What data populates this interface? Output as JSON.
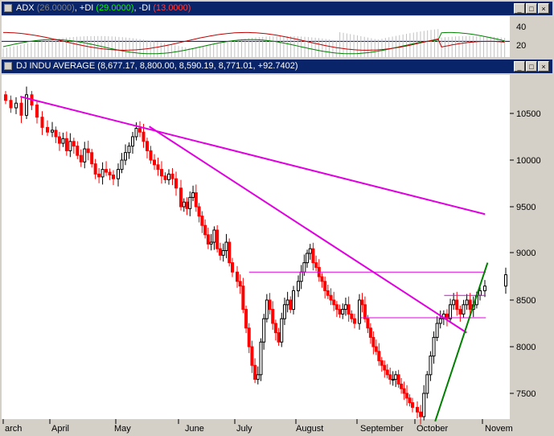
{
  "adx_window": {
    "title_prefix": "ADX",
    "adx_value": "(26.0000)",
    "pdi_label": "+DI",
    "pdi_value": "(29.0000)",
    "mdi_label": "-DI",
    "mdi_value": "(13.0000)",
    "y_ticks": [
      "40",
      "20"
    ],
    "colors": {
      "adx": "#c0c0c0",
      "pdi": "#008000",
      "mdi": "#c00000",
      "reference": "#00008b"
    }
  },
  "price_window": {
    "title": "DJ INDU AVERAGE",
    "ohlc_text": "(8,677.17, 8,800.00, 8,590.19, 8,771.01, +92.7402)"
  },
  "chart_data": {
    "type": "candlestick",
    "title": "DJ INDU AVERAGE",
    "ylim": [
      7150,
      10800
    ],
    "y_ticks": [
      10500,
      10000,
      9500,
      9000,
      8500,
      8000,
      7500
    ],
    "x_labels": [
      "arch",
      "April",
      "May",
      "June",
      "July",
      "August",
      "September",
      "October",
      "Novem"
    ],
    "series": [
      {
        "month": "March",
        "values": [
          10640,
          10560,
          10610,
          10480,
          10700,
          10590,
          10460,
          10350,
          10300
        ]
      },
      {
        "month": "April",
        "values": [
          10320,
          10250,
          10180,
          10230,
          10100,
          10200,
          10150,
          10050,
          9980,
          10120,
          10080,
          9960,
          9850,
          9820,
          9900,
          9870,
          9840,
          9800
        ]
      },
      {
        "month": "May",
        "values": [
          9900,
          10000,
          10080,
          10150,
          10250,
          10340,
          10300,
          10200,
          10100,
          10000,
          9950,
          9900,
          9830,
          9790,
          9850,
          9800,
          9700
        ]
      },
      {
        "month": "June",
        "values": [
          9500,
          9550,
          9480,
          9600,
          9650,
          9500,
          9400,
          9300,
          9200,
          9100,
          9120,
          9250,
          9050,
          8980,
          9030,
          9120,
          8900,
          8800
        ]
      },
      {
        "month": "July",
        "values": [
          8700,
          8650,
          8400,
          8200,
          8000,
          7800,
          7650,
          7700,
          8050,
          8300,
          8500,
          8400,
          8250,
          8150,
          8050,
          8300,
          8450,
          8500,
          8400,
          8600
        ]
      },
      {
        "month": "August",
        "values": [
          8700,
          8800,
          8900,
          9000,
          9050,
          8900,
          8850,
          8750,
          8700,
          8600,
          8550,
          8500,
          8450,
          8400,
          8350,
          8400,
          8450,
          8350,
          8300,
          8250
        ]
      },
      {
        "month": "September",
        "values": [
          8500,
          8450,
          8300,
          8200,
          8100,
          8000,
          7950,
          7850,
          7800,
          7750,
          7700,
          7650,
          7650,
          7700,
          7600,
          7550,
          7500,
          7450,
          7400,
          7350
        ]
      },
      {
        "month": "October",
        "values": [
          7300,
          7250,
          7500,
          7700,
          7900,
          8100,
          8250,
          8300,
          8350,
          8300,
          8450,
          8500,
          8400,
          8350,
          8450,
          8500,
          8400,
          8450,
          8550,
          8600
        ]
      },
      {
        "month": "November",
        "values": [
          8650,
          8771
        ]
      }
    ],
    "last_bar": {
      "open": 8677.17,
      "high": 8800.0,
      "low": 8590.19,
      "close": 8771.01,
      "change": 92.7402
    },
    "trendlines": [
      {
        "color": "#e000e0",
        "from": {
          "x": "Mar-12",
          "y": 10680
        },
        "to": {
          "x": "Nov-04",
          "y": 9420
        }
      },
      {
        "color": "#e000e0",
        "from": {
          "x": "May-17",
          "y": 10360
        },
        "to": {
          "x": "Oct-24",
          "y": 8150
        }
      },
      {
        "color": "#e000e0",
        "from": {
          "x": "Jul-08",
          "y": 8800
        },
        "to": {
          "x": "Nov-05",
          "y": 8800
        }
      },
      {
        "color": "#e000e0",
        "from": {
          "x": "Sep-03",
          "y": 8310
        },
        "to": {
          "x": "Nov-05",
          "y": 8310
        }
      },
      {
        "color": "#e000e0",
        "from": {
          "x": "Oct-14",
          "y": 8550
        },
        "to": {
          "x": "Nov-05",
          "y": 8550
        }
      },
      {
        "color": "#008000",
        "from": {
          "x": "Oct-10",
          "y": 7200
        },
        "to": {
          "x": "Nov-07",
          "y": 8900
        }
      }
    ],
    "colors": {
      "up": "#000000",
      "down": "#ff0000",
      "background": "#ffffff"
    }
  }
}
